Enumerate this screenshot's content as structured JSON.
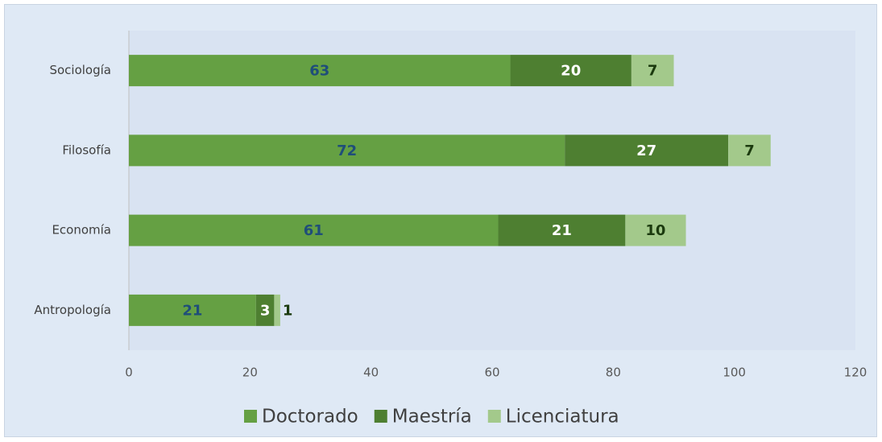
{
  "chart_data": {
    "type": "stacked_barh",
    "categories": [
      "Sociología",
      "Filosofía",
      "Economía",
      "Antropología"
    ],
    "series": [
      {
        "name": "Doctorado",
        "color": "#65a043",
        "label_color": "#1f4e79",
        "values": [
          63,
          72,
          61,
          21
        ]
      },
      {
        "name": "Maestría",
        "color": "#4e7f31",
        "label_color": "#ffffff",
        "values": [
          20,
          27,
          21,
          3
        ]
      },
      {
        "name": "Licenciatura",
        "color": "#a3c98b",
        "label_color": "#1b3a0e",
        "values": [
          7,
          7,
          10,
          1
        ]
      }
    ],
    "xlim": [
      0,
      120
    ],
    "xticks": [
      0,
      20,
      40,
      60,
      80,
      100,
      120
    ],
    "legend": "bottom",
    "grid": false
  }
}
